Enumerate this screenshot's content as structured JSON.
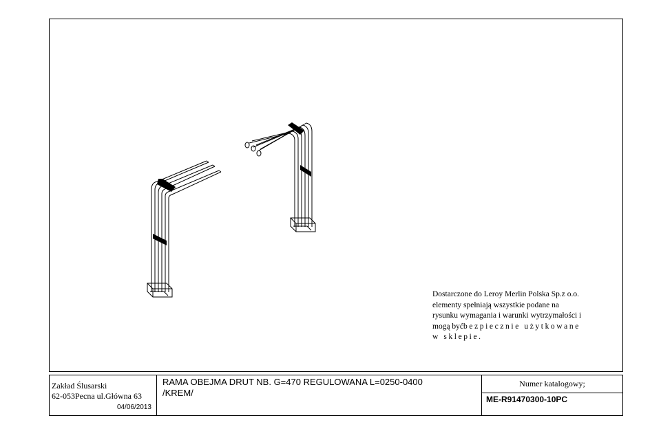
{
  "note": {
    "line1": "Dostarczone do Leroy Merlin Polska Sp.z o.o.",
    "line2": "elementy spełniają wszystkie podane na",
    "line3": "rysunku wymagania i warunki wytrzymałości i",
    "line4_start": "mogą być",
    "line4_spaced": "bezpiecznie użytkowane",
    "line5_spaced": "w sklepie."
  },
  "title_block": {
    "company_name": "Zakład Ślusarski",
    "company_address": "62-053Pecna ul.Główna 63",
    "date": "04/06/2013",
    "description_line1": "RAMA OBEJMA DRUT NB. G=470  REGULOWANA L=0250-0400",
    "description_line2": "/KREM/",
    "catalog_label": "Numer katalogowy;",
    "catalog_number": "ME-R91470300-10PC"
  },
  "colors": {
    "line": "#000000",
    "background": "#ffffff"
  }
}
